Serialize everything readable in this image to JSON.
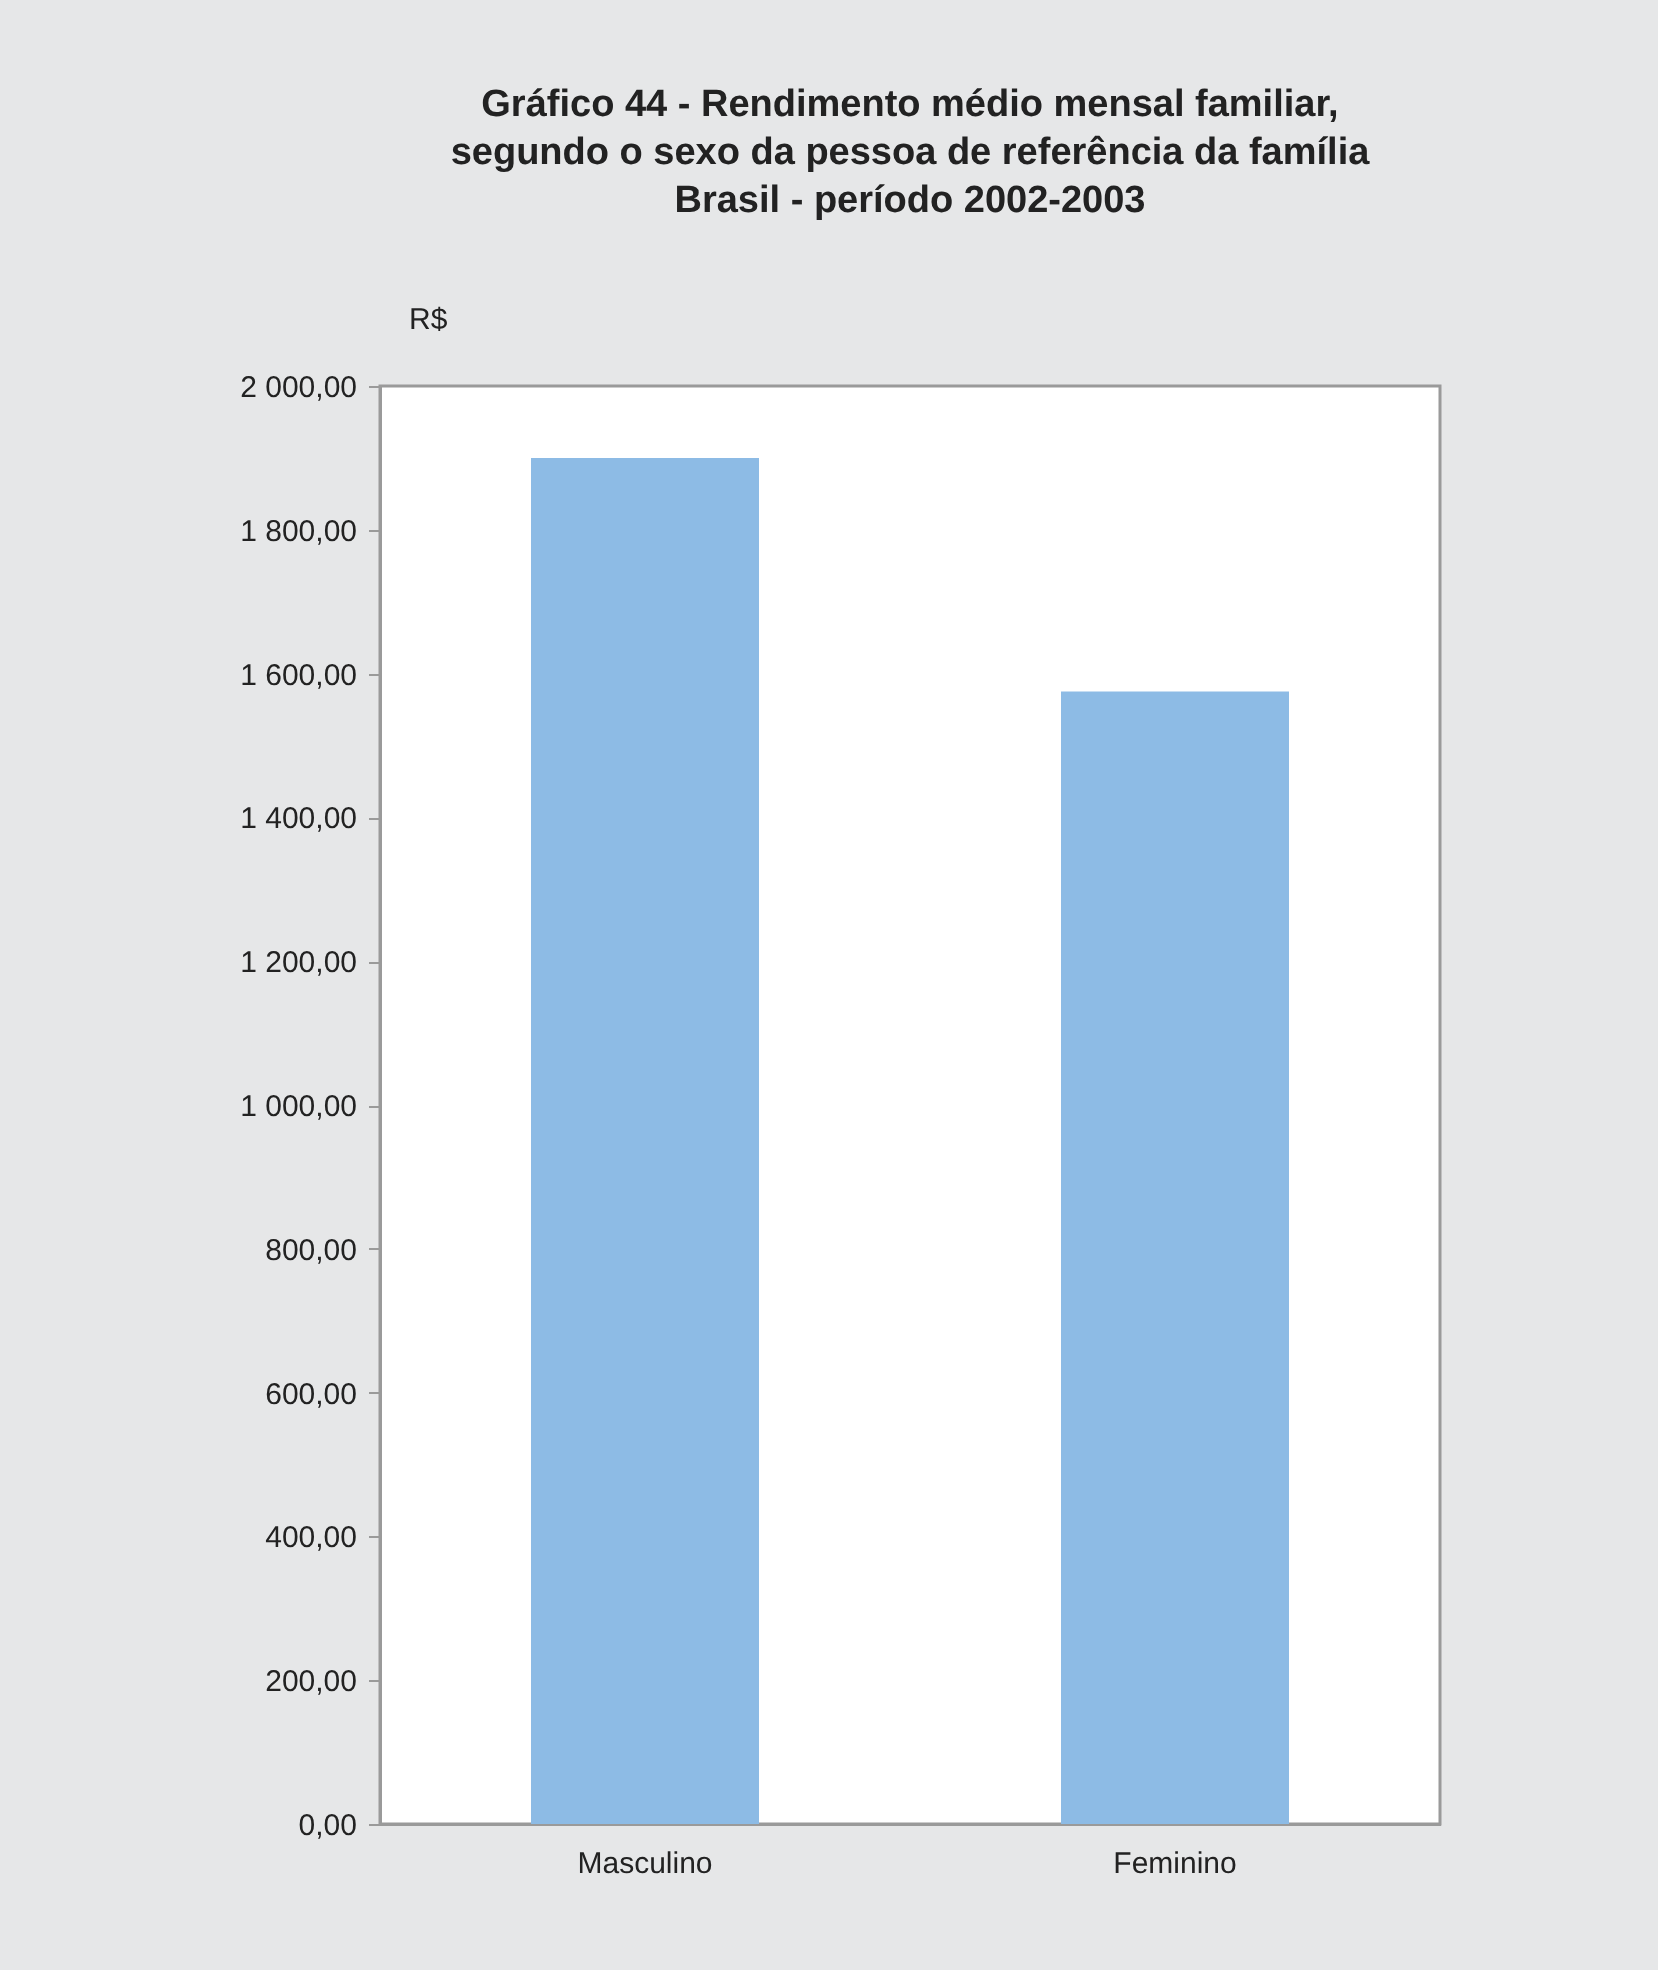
{
  "chart_data": {
    "type": "bar",
    "title": [
      "Gráfico 44 - Rendimento médio mensal familiar,",
      "segundo o sexo da pessoa de referência da família",
      "Brasil - período 2002-2003"
    ],
    "ylabel": "R$",
    "categories": [
      "Masculino",
      "Feminino"
    ],
    "values": [
      1900,
      1575
    ],
    "color": "#8dbbe5",
    "ylim": [
      0,
      2000
    ],
    "yticks": [
      {
        "value": 0,
        "label": "0,00"
      },
      {
        "value": 200,
        "label": "200,00"
      },
      {
        "value": 400,
        "label": "400,00"
      },
      {
        "value": 600,
        "label": "600,00"
      },
      {
        "value": 800,
        "label": "800,00"
      },
      {
        "value": 1000,
        "label": "1 000,00"
      },
      {
        "value": 1200,
        "label": "1 200,00"
      },
      {
        "value": 1400,
        "label": "1 400,00"
      },
      {
        "value": 1600,
        "label": "1 600,00"
      },
      {
        "value": 1800,
        "label": "1 800,00"
      },
      {
        "value": 2000,
        "label": "2 000,00"
      }
    ],
    "grid": false
  }
}
